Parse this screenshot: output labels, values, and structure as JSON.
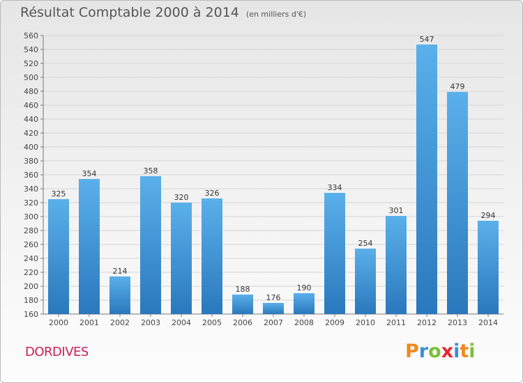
{
  "chart_data": {
    "type": "bar",
    "title": "Résultat Comptable 2000 à 2014",
    "subtitle": "(en milliers d'€)",
    "categories": [
      "2000",
      "2001",
      "2002",
      "2003",
      "2004",
      "2005",
      "2006",
      "2007",
      "2008",
      "2009",
      "2010",
      "2011",
      "2012",
      "2013",
      "2014"
    ],
    "values": [
      325,
      354,
      214,
      358,
      320,
      326,
      188,
      176,
      190,
      334,
      254,
      301,
      547,
      479,
      294
    ],
    "ylim": [
      160,
      560
    ],
    "ytick_step": 20,
    "xlabel": "",
    "ylabel": "",
    "grid": true,
    "bar_color_top": "#5ab0ea",
    "bar_color_bottom": "#2a78bd"
  },
  "footer": {
    "commune": "DORDIVES",
    "brand_letters": [
      "P",
      "r",
      "o",
      "x",
      "i",
      "t",
      "i"
    ],
    "brand_colors": [
      "#f08a1d",
      "#3c8fd8",
      "#7bbf3a",
      "#e8262f",
      "#3c8fd8",
      "#f08a1d",
      "#7bbf3a"
    ]
  }
}
